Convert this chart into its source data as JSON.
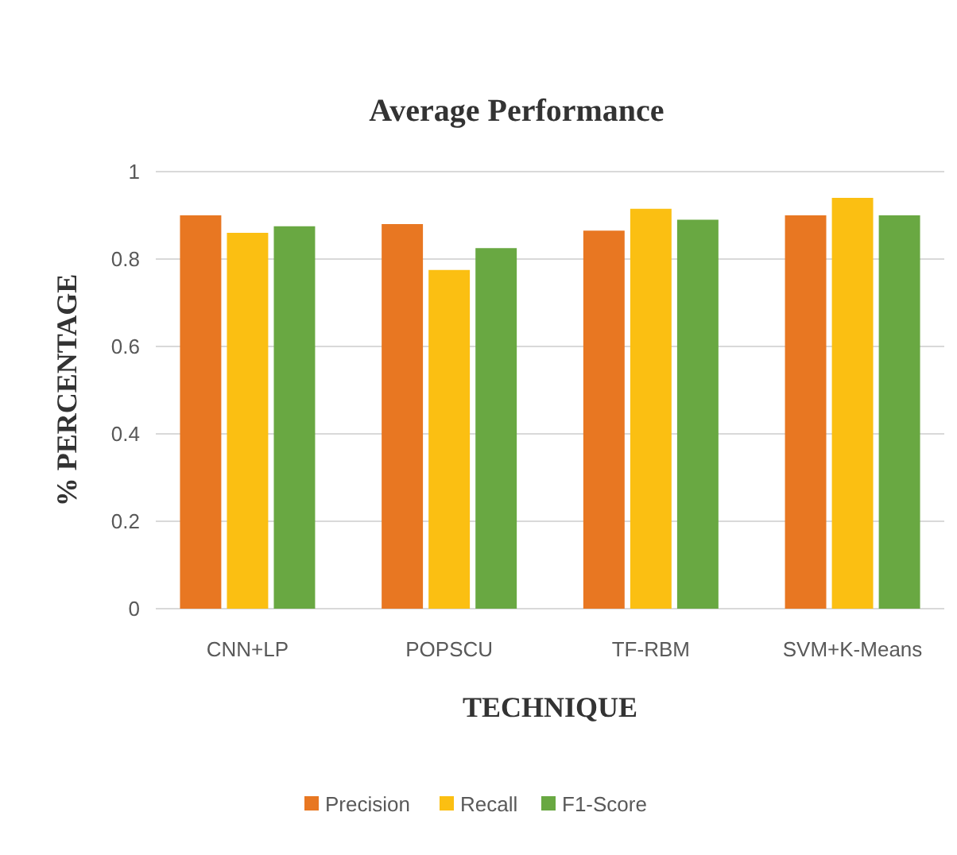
{
  "chart_data": {
    "type": "bar",
    "title": "Average Performance",
    "xlabel": "TECHNIQUE",
    "ylabel": "% PERCENTAGE",
    "categories": [
      "CNN+LP",
      "POPSCU",
      "TF-RBM",
      "SVM+K-Means"
    ],
    "series": [
      {
        "name": "Precision",
        "color": "#e87722",
        "values": [
          0.9,
          0.88,
          0.865,
          0.9
        ]
      },
      {
        "name": "Recall",
        "color": "#fbbf12",
        "values": [
          0.86,
          0.775,
          0.915,
          0.94
        ]
      },
      {
        "name": "F1-Score",
        "color": "#69a842",
        "values": [
          0.875,
          0.825,
          0.89,
          0.9
        ]
      }
    ],
    "ylim": [
      0,
      1
    ],
    "yticks": [
      0,
      0.2,
      0.4,
      0.6,
      0.8,
      1
    ],
    "grid": "y",
    "legend": "bottom"
  }
}
